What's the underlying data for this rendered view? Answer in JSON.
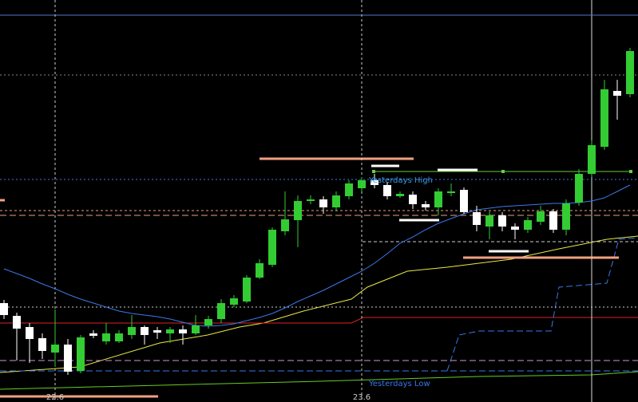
{
  "chart_data": {
    "type": "candlestick",
    "categories": [
      null,
      null,
      null,
      null,
      "22.6",
      null,
      null,
      null,
      null,
      null,
      null,
      null,
      null,
      null,
      null,
      null,
      null,
      null,
      null,
      null,
      null,
      null,
      null,
      null,
      null,
      null,
      null,
      null,
      "23.6",
      null,
      null,
      null,
      null,
      null,
      null,
      null,
      null,
      null,
      null,
      null,
      null,
      null,
      null,
      null,
      null,
      null,
      null,
      null,
      null,
      null
    ],
    "open": [
      124,
      108,
      94,
      80,
      62,
      72,
      39,
      86,
      76,
      76,
      84,
      94,
      90,
      86,
      91,
      86,
      96,
      104,
      122,
      126,
      156,
      172,
      214,
      228,
      252,
      254,
      244,
      258,
      268,
      278,
      272,
      258,
      260,
      248,
      244,
      262,
      266,
      238,
      220,
      234,
      220,
      216,
      226,
      239,
      216,
      250,
      286,
      320,
      390,
      386
    ],
    "high": [
      128,
      112,
      99,
      86,
      116,
      79,
      84,
      90,
      99,
      90,
      109,
      96,
      94,
      94,
      96,
      109,
      108,
      129,
      134,
      159,
      179,
      219,
      264,
      259,
      259,
      258,
      264,
      278,
      282,
      286,
      276,
      264,
      264,
      252,
      268,
      274,
      269,
      246,
      239,
      238,
      224,
      232,
      246,
      242,
      254,
      292,
      328,
      404,
      404,
      444
    ],
    "low": [
      104,
      52,
      49,
      54,
      44,
      34,
      36,
      80,
      72,
      74,
      79,
      72,
      79,
      74,
      72,
      84,
      92,
      99,
      119,
      124,
      154,
      169,
      209,
      194,
      248,
      236,
      239,
      254,
      264,
      268,
      254,
      256,
      242,
      240,
      234,
      258,
      236,
      214,
      204,
      214,
      204,
      212,
      222,
      212,
      209,
      246,
      282,
      316,
      354,
      382
    ],
    "close": [
      109,
      92,
      79,
      64,
      72,
      38,
      81,
      83,
      86,
      86,
      94,
      84,
      87,
      91,
      86,
      96,
      104,
      124,
      130,
      156,
      174,
      216,
      229,
      252,
      254,
      244,
      259,
      274,
      278,
      272,
      258,
      261,
      248,
      244,
      264,
      264,
      238,
      222,
      234,
      220,
      216,
      228,
      239,
      216,
      249,
      286,
      322,
      392,
      384,
      440
    ],
    "up_color": "#33cc33",
    "down_color": "#ffffff",
    "ylim": [
      0,
      504
    ],
    "overlays": [
      {
        "color": "#3a78e8",
        "values": [
          167,
          161,
          155,
          148,
          142,
          135,
          129,
          124,
          119,
          114,
          111,
          109,
          107,
          104,
          100,
          96,
          95,
          96,
          98,
          102,
          106,
          111,
          118,
          126,
          133,
          140,
          148,
          156,
          164,
          174,
          186,
          199,
          207,
          216,
          224,
          230,
          236,
          241,
          243,
          245,
          246,
          247,
          248,
          249,
          249,
          250,
          252,
          256,
          264,
          272
        ]
      }
    ],
    "levels": [
      {
        "value": 485,
        "color": "#5577cc",
        "dash": "none"
      },
      {
        "value": 410,
        "color": "#888888",
        "dash": "2,3"
      },
      {
        "value": 279,
        "color": "#3a78e8",
        "dash": "2,3"
      },
      {
        "value": 240,
        "color": "#e8a080",
        "dash": "3,3"
      },
      {
        "value": 234,
        "color": "#e8a080",
        "dash": "8,4"
      },
      {
        "value": 119,
        "color": "#cccccc",
        "dash": "2,3"
      },
      {
        "value": 52,
        "color": "#cc99cc",
        "dash": "8,4"
      },
      {
        "value": 39,
        "color": "#3a78e8",
        "dash": "8,4"
      }
    ],
    "annotations": [
      {
        "text": "Yesterdays High",
        "value": 278,
        "color": "#3a9ae8"
      },
      {
        "text": "Yesterdays Low",
        "value": 23,
        "color": "#3a78e8"
      }
    ]
  }
}
